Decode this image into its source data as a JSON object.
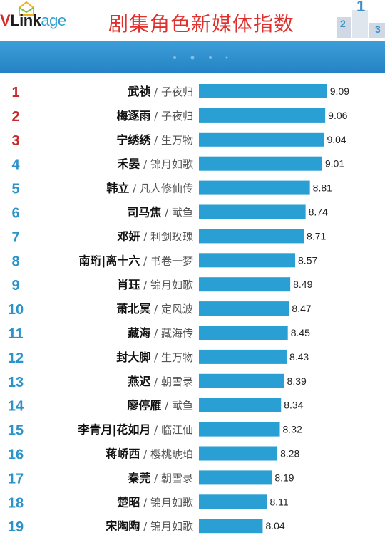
{
  "header": {
    "logo": "VLinkage",
    "title": "剧集角色新媒体指数"
  },
  "chart_data": {
    "type": "bar",
    "orientation": "horizontal",
    "title": "剧集角色新媒体指数",
    "xlim": [
      7.0,
      9.3
    ],
    "bar_color": "#2a9fd3",
    "rank_color_top": "#c8282b",
    "rank_color_rest": "#2a93c9",
    "separator": "/",
    "items": [
      {
        "rank": "1",
        "name": "武祯",
        "drama": "子夜归",
        "value": 9.09
      },
      {
        "rank": "2",
        "name": "梅逐雨",
        "drama": "子夜归",
        "value": 9.06
      },
      {
        "rank": "3",
        "name": "宁绣绣",
        "drama": "生万物",
        "value": 9.04
      },
      {
        "rank": "4",
        "name": "禾晏",
        "drama": "锦月如歌",
        "value": 9.01
      },
      {
        "rank": "5",
        "name": "韩立",
        "drama": "凡人修仙传",
        "value": 8.81
      },
      {
        "rank": "6",
        "name": "司马焦",
        "drama": "献鱼",
        "value": 8.74
      },
      {
        "rank": "7",
        "name": "邓妍",
        "drama": "利剑玫瑰",
        "value": 8.71
      },
      {
        "rank": "8",
        "name": "南珩|离十六",
        "drama": "书卷一梦",
        "value": 8.57
      },
      {
        "rank": "9",
        "name": "肖珏",
        "drama": "锦月如歌",
        "value": 8.49
      },
      {
        "rank": "10",
        "name": "萧北冥",
        "drama": "定风波",
        "value": 8.47
      },
      {
        "rank": "11",
        "name": "藏海",
        "drama": "藏海传",
        "value": 8.45
      },
      {
        "rank": "12",
        "name": "封大脚",
        "drama": "生万物",
        "value": 8.43
      },
      {
        "rank": "13",
        "name": "燕迟",
        "drama": "朝雪录",
        "value": 8.39
      },
      {
        "rank": "14",
        "name": "廖停雁",
        "drama": "献鱼",
        "value": 8.34
      },
      {
        "rank": "15",
        "name": "李青月|花如月",
        "drama": "临江仙",
        "value": 8.32
      },
      {
        "rank": "16",
        "name": "蒋峤西",
        "drama": "樱桃琥珀",
        "value": 8.28
      },
      {
        "rank": "17",
        "name": "秦莞",
        "drama": "朝雪录",
        "value": 8.19
      },
      {
        "rank": "18",
        "name": "楚昭",
        "drama": "锦月如歌",
        "value": 8.11
      },
      {
        "rank": "19",
        "name": "宋陶陶",
        "drama": "锦月如歌",
        "value": 8.04
      }
    ]
  }
}
